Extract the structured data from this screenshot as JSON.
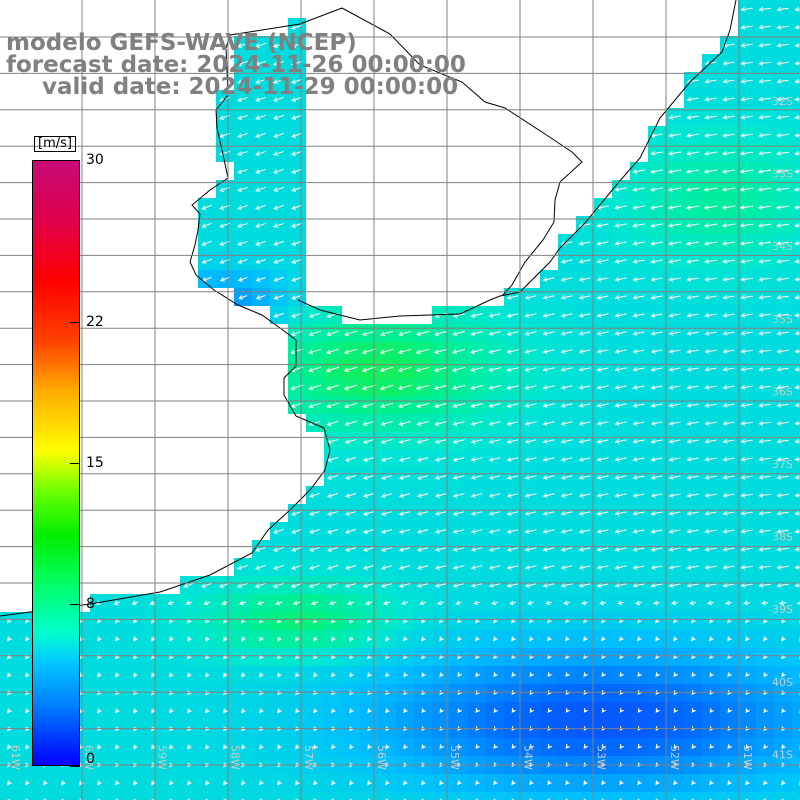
{
  "title": {
    "model": "modelo GEFS-WAVE (NCEP)",
    "forecast": "forecast date: 2024-11-26 00:00:00",
    "valid": "valid date: 2024-11-29 00:00:00"
  },
  "colorbar": {
    "unit": "[m/s]",
    "ticks": [
      {
        "value": 30,
        "label": "30"
      },
      {
        "value": 22,
        "label": "22"
      },
      {
        "value": 15,
        "label": "15"
      },
      {
        "value": 8,
        "label": "8"
      },
      {
        "value": 0,
        "label": "0"
      }
    ],
    "min": 0,
    "max": 30
  },
  "map": {
    "latitude_labels": [
      "32S",
      "33S",
      "34S",
      "35S",
      "36S",
      "37S",
      "38S",
      "39S",
      "40S",
      "41S"
    ],
    "longitude_labels": [
      "61W",
      "60W",
      "59W",
      "58W",
      "57W",
      "56W",
      "55W",
      "54W",
      "53W",
      "52W",
      "51W"
    ],
    "wind_direction": "arrows point toward the southwest over most of the domain, weaker and more southward near 40S",
    "colors": {
      "ocean_weak": "#1a3cff",
      "ocean_mid": "#00a0ff",
      "ocean_strong": "#00e8b0",
      "ocean_peak": "#22ee22",
      "land": "#ffffff",
      "coast": "#000000",
      "grid": "#808080",
      "arrow": "#ffffff"
    }
  }
}
